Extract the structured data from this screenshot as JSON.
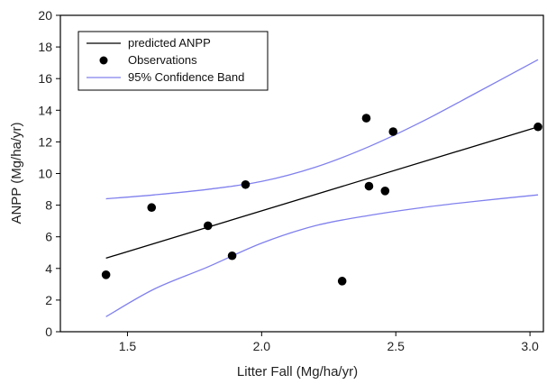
{
  "chart_data": {
    "type": "scatter",
    "title": "",
    "xlabel": "Litter Fall (Mg/ha/yr)",
    "ylabel": "ANPP (Mg/ha/yr)",
    "xlim": [
      1.25,
      3.05
    ],
    "ylim": [
      0,
      20
    ],
    "xticks": [
      "1.5",
      "2.0",
      "2.5",
      "3.0"
    ],
    "yticks": [
      "0",
      "2",
      "4",
      "6",
      "8",
      "10",
      "12",
      "14",
      "16",
      "18",
      "20"
    ],
    "grid": false,
    "legend_position": "top-left",
    "legend": [
      "predicted ANPP",
      "Observations",
      "95% Confidence Band"
    ],
    "series": [
      {
        "name": "Observations",
        "type": "scatter",
        "color": "#000000",
        "points": [
          [
            1.42,
            3.6
          ],
          [
            1.59,
            7.85
          ],
          [
            1.8,
            6.7
          ],
          [
            1.89,
            4.8
          ],
          [
            1.94,
            9.3
          ],
          [
            2.3,
            3.2
          ],
          [
            2.39,
            13.5
          ],
          [
            2.4,
            9.2
          ],
          [
            2.46,
            8.9
          ],
          [
            2.49,
            12.65
          ],
          [
            3.03,
            12.95
          ]
        ]
      },
      {
        "name": "predicted ANPP",
        "type": "line",
        "color": "#000000",
        "points": [
          [
            1.42,
            4.65
          ],
          [
            3.03,
            12.95
          ]
        ]
      },
      {
        "name": "95% Confidence Band",
        "type": "line",
        "color": "#8080ee",
        "upper": [
          [
            1.42,
            8.4
          ],
          [
            1.6,
            8.65
          ],
          [
            1.8,
            9.0
          ],
          [
            2.0,
            9.5
          ],
          [
            2.2,
            10.4
          ],
          [
            2.4,
            11.7
          ],
          [
            2.6,
            13.3
          ],
          [
            2.8,
            15.1
          ],
          [
            3.03,
            17.2
          ]
        ],
        "lower": [
          [
            1.42,
            0.95
          ],
          [
            1.6,
            2.7
          ],
          [
            1.8,
            4.1
          ],
          [
            2.0,
            5.6
          ],
          [
            2.2,
            6.7
          ],
          [
            2.4,
            7.35
          ],
          [
            2.6,
            7.85
          ],
          [
            2.8,
            8.25
          ],
          [
            3.03,
            8.65
          ]
        ]
      }
    ]
  }
}
